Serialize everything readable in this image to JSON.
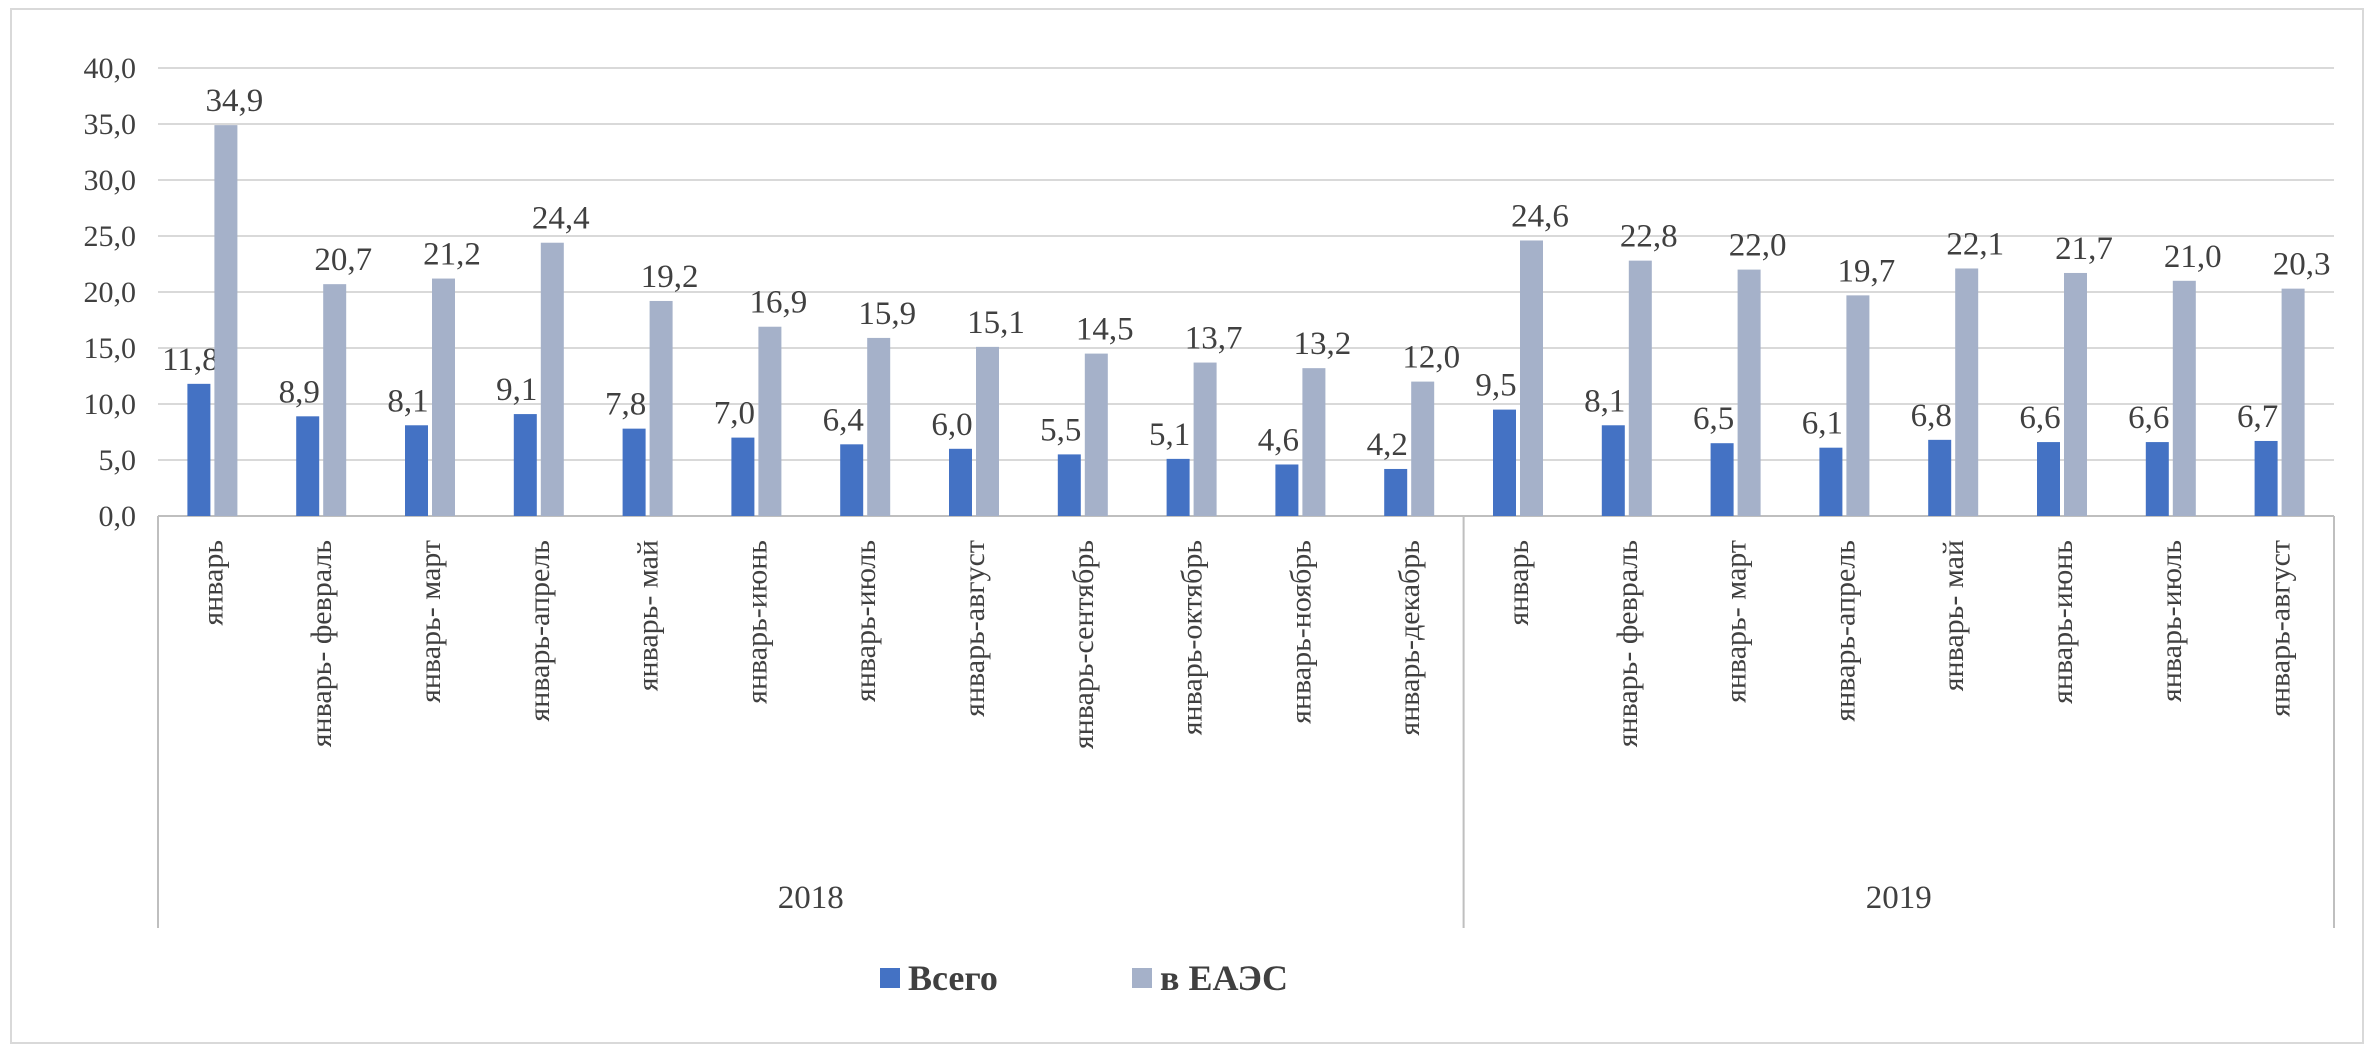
{
  "chart_data": {
    "type": "bar",
    "ylim": [
      0,
      40
    ],
    "ytick_step": 5,
    "y_ticks": [
      "0,0",
      "5,0",
      "10,0",
      "15,0",
      "20,0",
      "25,0",
      "30,0",
      "35,0",
      "40,0"
    ],
    "grid": true,
    "legend_position": "bottom",
    "groups": [
      {
        "label": "2018",
        "categories": [
          "январь",
          "январь- февраль",
          "январь- март",
          "январь-апрель",
          "январь- май",
          "январь-июнь",
          "январь-июль",
          "январь-август",
          "январь-сентябрь",
          "январь-октябрь",
          "январь-ноябрь",
          "январь-декабрь"
        ]
      },
      {
        "label": "2019",
        "categories": [
          "январь",
          "январь- февраль",
          "январь- март",
          "январь-апрель",
          "январь- май",
          "январь-июнь",
          "январь-июль",
          "январь-август"
        ]
      }
    ],
    "series": [
      {
        "name": "Всего",
        "color": "#4472c4",
        "values": [
          11.8,
          8.9,
          8.1,
          9.1,
          7.8,
          7.0,
          6.4,
          6.0,
          5.5,
          5.1,
          4.6,
          4.2,
          9.5,
          8.1,
          6.5,
          6.1,
          6.8,
          6.6,
          6.6,
          6.7
        ],
        "labels": [
          "11,8",
          "8,9",
          "8,1",
          "9,1",
          "7,8",
          "7,0",
          "6,4",
          "6,0",
          "5,5",
          "5,1",
          "4,6",
          "4,2",
          "9,5",
          "8,1",
          "6,5",
          "6,1",
          "6,8",
          "6,6",
          "6,6",
          "6,7"
        ]
      },
      {
        "name": "в ЕАЭС",
        "color": "#a5b1c9",
        "values": [
          34.9,
          20.7,
          21.2,
          24.4,
          19.2,
          16.9,
          15.9,
          15.1,
          14.5,
          13.7,
          13.2,
          12.0,
          24.6,
          22.8,
          22.0,
          19.7,
          22.1,
          21.7,
          21.0,
          20.3
        ],
        "labels": [
          "34,9",
          "20,7",
          "21,2",
          "24,4",
          "19,2",
          "16,9",
          "15,9",
          "15,1",
          "14,5",
          "13,7",
          "13,2",
          "12,0",
          "24,6",
          "22,8",
          "22,0",
          "19,7",
          "22,1",
          "21,7",
          "21,0",
          "20,3"
        ]
      }
    ]
  },
  "colors": {
    "grid": "#d9d9d9",
    "axis": "#bfbfbf",
    "text": "#404040"
  }
}
